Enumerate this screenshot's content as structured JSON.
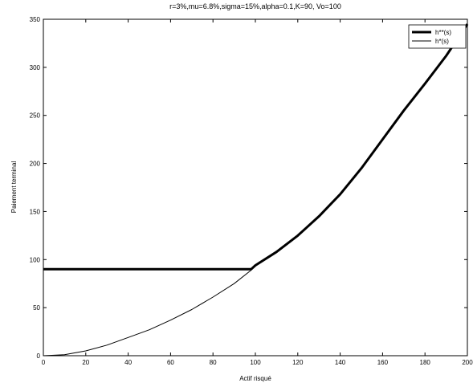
{
  "chart_data": {
    "type": "line",
    "title": "r=3%,mu=6.8%,sigma=15%,alpha=0.1,K=90, Vo=100",
    "xlabel": "Actif risqué",
    "ylabel": "Paiement terminal",
    "xlim": [
      0,
      200
    ],
    "ylim": [
      0,
      350
    ],
    "x_ticks": [
      0,
      20,
      40,
      60,
      80,
      100,
      120,
      140,
      160,
      180,
      200
    ],
    "y_ticks": [
      0,
      50,
      100,
      150,
      200,
      250,
      300,
      350
    ],
    "grid": false,
    "legend_position": "top-right",
    "series": [
      {
        "name": "h**(s)",
        "style": "thick",
        "color": "#000000",
        "x": [
          0,
          10,
          20,
          30,
          40,
          50,
          60,
          70,
          80,
          90,
          98,
          100,
          110,
          120,
          130,
          140,
          150,
          160,
          170,
          180,
          190,
          200
        ],
        "y": [
          90,
          90,
          90,
          90,
          90,
          90,
          90,
          90,
          90,
          90,
          90,
          94,
          108,
          125,
          145,
          168,
          195,
          225,
          255,
          283,
          312,
          345
        ]
      },
      {
        "name": "h*(s)",
        "style": "thin",
        "color": "#000000",
        "x": [
          0,
          10,
          20,
          30,
          40,
          50,
          60,
          70,
          80,
          90,
          98,
          100,
          110,
          120,
          130,
          140,
          150,
          160,
          170,
          180,
          190,
          200
        ],
        "y": [
          0,
          1,
          5,
          11,
          19,
          27,
          37,
          48,
          61,
          75,
          89,
          94,
          108,
          125,
          145,
          168,
          195,
          225,
          255,
          283,
          312,
          345
        ]
      }
    ]
  }
}
